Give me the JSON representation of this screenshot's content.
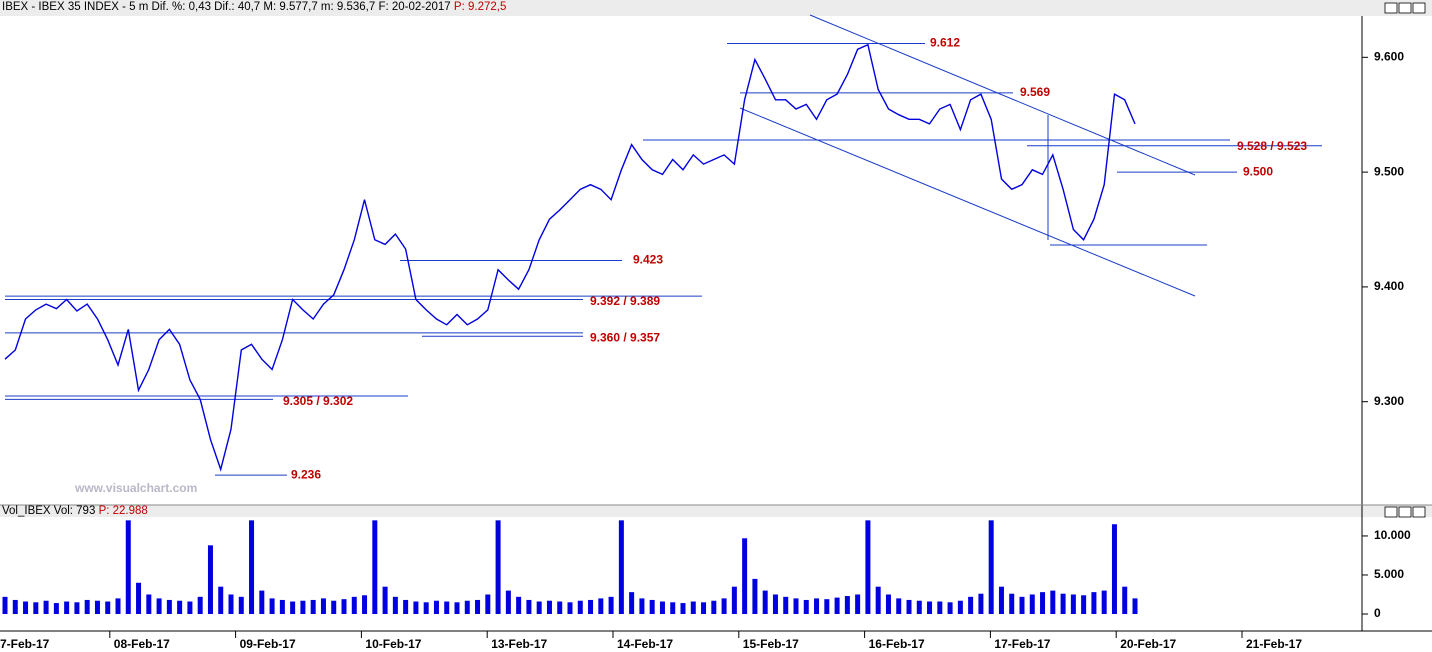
{
  "chart_data": [
    {
      "type": "line",
      "title": "IBEX - IBEX 35 INDEX - 5 m Dif. %: 0,43 Dif.: 40,7 M: 9.577,7 m: 9.536,7 F: 20-02-2017",
      "subtitle": "P: 9.272,5",
      "color": "#0000e0",
      "values": [
        9337,
        9345,
        9372,
        9380,
        9385,
        9381,
        9389,
        9379,
        9385,
        9372,
        9354,
        9332,
        9363,
        9310,
        9328,
        9354,
        9363,
        9350,
        9319,
        9302,
        9267,
        9241,
        9276,
        9345,
        9350,
        9337,
        9328,
        9354,
        9389,
        9380,
        9372,
        9385,
        9393,
        9415,
        9441,
        9476,
        9441,
        9437,
        9446,
        9433,
        9389,
        9380,
        9372,
        9367,
        9376,
        9367,
        9372,
        9380,
        9415,
        9406,
        9398,
        9415,
        9441,
        9459,
        9467,
        9476,
        9485,
        9489,
        9485,
        9476,
        9502,
        9524,
        9511,
        9502,
        9498,
        9511,
        9502,
        9515,
        9507,
        9511,
        9515,
        9507,
        9563,
        9598,
        9581,
        9563,
        9563,
        9555,
        9559,
        9546,
        9563,
        9568,
        9585,
        9607,
        9611,
        9572,
        9555,
        9550,
        9546,
        9546,
        9542,
        9555,
        9559,
        9537,
        9563,
        9568,
        9546,
        9494,
        9485,
        9489,
        9502,
        9498,
        9515,
        9485,
        9450,
        9441,
        9459,
        9489,
        9568,
        9563,
        9542
      ],
      "ylim": [
        9210,
        9636
      ],
      "yticks": [
        {
          "value": 9300,
          "label": "9.300"
        },
        {
          "value": 9400,
          "label": "9.400"
        },
        {
          "value": 9500,
          "label": "9.500"
        },
        {
          "value": 9600,
          "label": "9.600"
        }
      ],
      "levels": [
        {
          "label": "9.612",
          "values": [
            9612
          ]
        },
        {
          "label": "9.569",
          "values": [
            9569
          ]
        },
        {
          "label": "9.528 / 9.523",
          "values": [
            9528,
            9523
          ]
        },
        {
          "label": "9.500",
          "values": [
            9500
          ]
        },
        {
          "label": "9.423",
          "values": [
            9423
          ]
        },
        {
          "label": "9.392 / 9.389",
          "values": [
            9392,
            9389
          ]
        },
        {
          "label": "9.360 / 9.357",
          "values": [
            9360,
            9357
          ]
        },
        {
          "label": "9.305 / 9.302",
          "values": [
            9305,
            9302
          ]
        },
        {
          "label": "9.236",
          "values": [
            9236
          ]
        }
      ],
      "watermark": "www.visualchart.com"
    },
    {
      "type": "bar",
      "title": "Vol_IBEX Vol: 793",
      "subtitle": "P: 22.988",
      "color": "#0000e0",
      "values": [
        2200,
        1800,
        1600,
        1500,
        1700,
        1400,
        1600,
        1500,
        1800,
        1700,
        1600,
        2000,
        12000,
        4000,
        2500,
        2000,
        1800,
        1700,
        1600,
        2200,
        8800,
        3500,
        2500,
        2200,
        12000,
        3000,
        2000,
        1800,
        1600,
        1700,
        1800,
        2000,
        1700,
        1900,
        2200,
        2400,
        12000,
        3500,
        2200,
        1800,
        1600,
        1500,
        1700,
        1600,
        1500,
        1700,
        1800,
        2500,
        12000,
        3000,
        2200,
        1800,
        1600,
        1700,
        1600,
        1500,
        1700,
        1800,
        2000,
        2200,
        12000,
        2800,
        2000,
        1800,
        1600,
        1500,
        1400,
        1600,
        1500,
        1700,
        2000,
        3500,
        9700,
        4500,
        3000,
        2500,
        2200,
        2000,
        1800,
        2000,
        1900,
        2100,
        2300,
        2500,
        12000,
        3500,
        2500,
        2000,
        1800,
        1700,
        1600,
        1600,
        1500,
        1700,
        2200,
        2600,
        12000,
        3500,
        2600,
        2200,
        2500,
        2800,
        3000,
        2600,
        2500,
        2400,
        2800,
        3000,
        11500,
        3500,
        2000
      ],
      "ylim": [
        -2050,
        12300
      ],
      "yticks": [
        0,
        {
          "value": 5000,
          "label": "5.000"
        },
        {
          "value": 10000,
          "label": "10.000"
        }
      ],
      "x_axis_labels": [
        "7-Feb-17",
        "08-Feb-17",
        "09-Feb-17",
        "10-Feb-17",
        "13-Feb-17",
        "14-Feb-17",
        "15-Feb-17",
        "16-Feb-17",
        "17-Feb-17",
        "20-Feb-17",
        "21-Feb-17"
      ]
    }
  ]
}
